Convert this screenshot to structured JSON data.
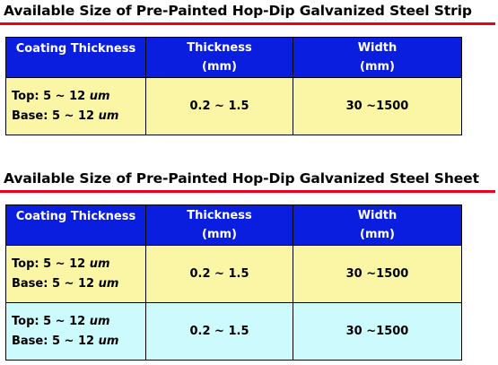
{
  "strip": {
    "title": "Available Size of Pre-Painted Hop-Dip Galvanized Steel Strip",
    "headers": {
      "coating": "Coating Thickness",
      "thickness": "Thickness",
      "thickness_unit": "(mm)",
      "width": "Width",
      "width_unit": "(mm)"
    },
    "rows": [
      {
        "top_label": "Top: 5 ~ 12 ",
        "base_label": "Base: 5 ~ 12 ",
        "coating_unit": "um",
        "thickness": "0.2 ~ 1.5",
        "width": "30 ~1500",
        "color": "#fbf6a5"
      }
    ]
  },
  "sheet": {
    "title": "Available Size of Pre-Painted Hop-Dip Galvanized Steel Sheet",
    "headers": {
      "coating": "Coating Thickness",
      "thickness": "Thickness",
      "thickness_unit": "(mm)",
      "width": "Width",
      "width_unit": "(mm)"
    },
    "rows": [
      {
        "top_label": "Top: 5 ~ 12 ",
        "base_label": "Base: 5 ~ 12 ",
        "coating_unit": "um",
        "thickness": "0.2 ~ 1.5",
        "width": "30 ~1500",
        "color": "#fbf6a5"
      },
      {
        "top_label": "Top: 5 ~ 12 ",
        "base_label": "Base: 5 ~ 12 ",
        "coating_unit": "um",
        "thickness": "0.2 ~ 1.5",
        "width": "30 ~1500",
        "color": "#ccfafd"
      }
    ]
  },
  "colors": {
    "header_bg": "#0a1ee0",
    "rule": "#e8001c"
  }
}
